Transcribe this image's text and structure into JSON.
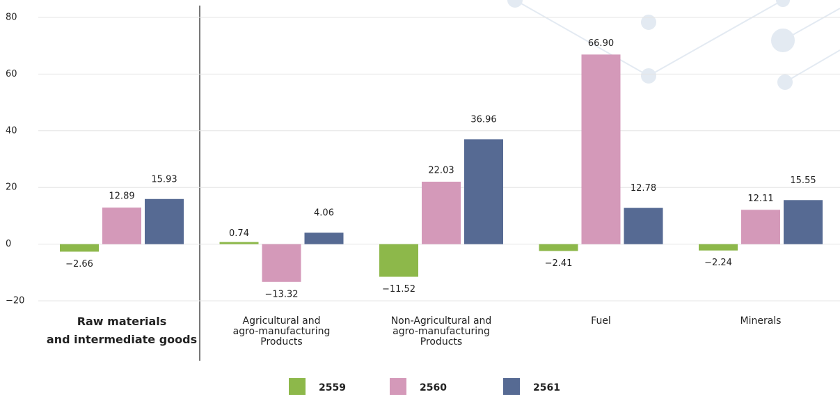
{
  "chart_data": {
    "type": "bar",
    "categories": [
      "Raw materials\nand intermediate goods",
      "Agricultural and\nagro-manufacturing\nProducts",
      "Non-Agricultural and\nagro-manufacturing\nProducts",
      "Fuel",
      "Minerals"
    ],
    "series": [
      {
        "name": "2559",
        "color": "#8db84a",
        "values": [
          -2.66,
          0.74,
          -11.52,
          -2.41,
          -2.24
        ],
        "value_labels": [
          "−2.66",
          "0.74",
          "−11.52",
          "−2.41",
          "−2.24"
        ]
      },
      {
        "name": "2560",
        "color": "#d499b9",
        "values": [
          12.89,
          -13.32,
          22.03,
          66.9,
          12.11
        ],
        "value_labels": [
          "12.89",
          "−13.32",
          "22.03",
          "66.90",
          "12.11"
        ]
      },
      {
        "name": "2561",
        "color": "#566a93",
        "values": [
          15.93,
          4.06,
          36.96,
          12.78,
          15.55
        ],
        "value_labels": [
          "15.93",
          "4.06",
          "36.96",
          "12.78",
          "15.55"
        ]
      }
    ],
    "ylim": [
      -20,
      80
    ],
    "yticks": [
      {
        "value": -20,
        "label": "−20"
      },
      0,
      20,
      40,
      60,
      80
    ],
    "grid": true
  }
}
